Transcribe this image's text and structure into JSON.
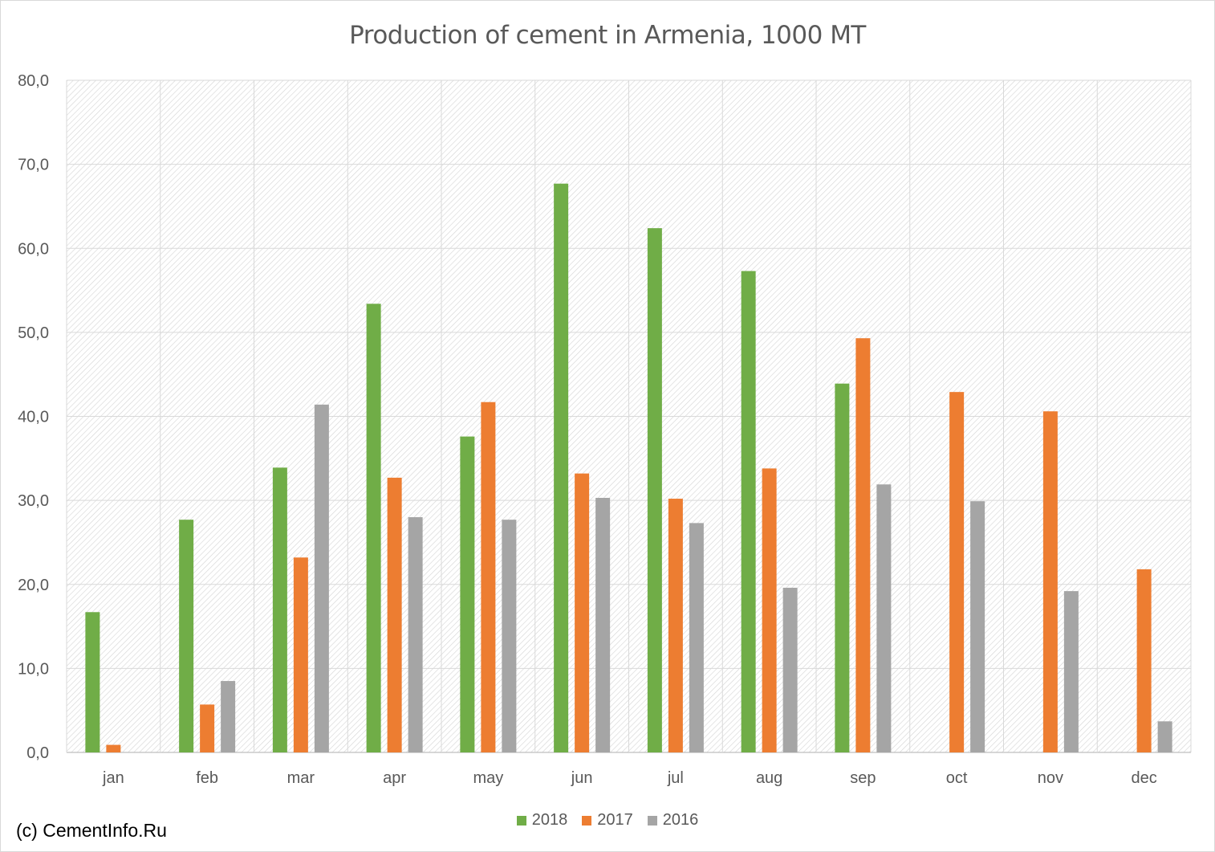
{
  "chart_data": {
    "type": "bar",
    "title": "Production of cement in Armenia, 1000 MT",
    "xlabel": "",
    "ylabel": "",
    "ylim": [
      0,
      80
    ],
    "yticks": [
      "0,0",
      "10,0",
      "20,0",
      "30,0",
      "40,0",
      "50,0",
      "60,0",
      "70,0",
      "80,0"
    ],
    "categories": [
      "jan",
      "feb",
      "mar",
      "apr",
      "may",
      "jun",
      "jul",
      "aug",
      "sep",
      "oct",
      "nov",
      "dec"
    ],
    "series": [
      {
        "name": "2018",
        "color": "#70ad47",
        "values": [
          16.7,
          27.7,
          33.9,
          53.4,
          37.6,
          67.7,
          62.4,
          57.3,
          43.9,
          null,
          null,
          null
        ]
      },
      {
        "name": "2017",
        "color": "#ed7d31",
        "values": [
          0.9,
          5.7,
          23.2,
          32.7,
          41.7,
          33.2,
          30.2,
          33.8,
          49.3,
          42.9,
          40.6,
          21.8
        ]
      },
      {
        "name": "2016",
        "color": "#a5a5a5",
        "values": [
          null,
          8.5,
          41.4,
          28.0,
          27.7,
          30.3,
          27.3,
          19.6,
          31.9,
          29.9,
          19.2,
          3.7
        ]
      }
    ],
    "grid": true,
    "legend": "bottom-center"
  },
  "footer": {
    "copyright": "(c) CementInfo.Ru"
  }
}
